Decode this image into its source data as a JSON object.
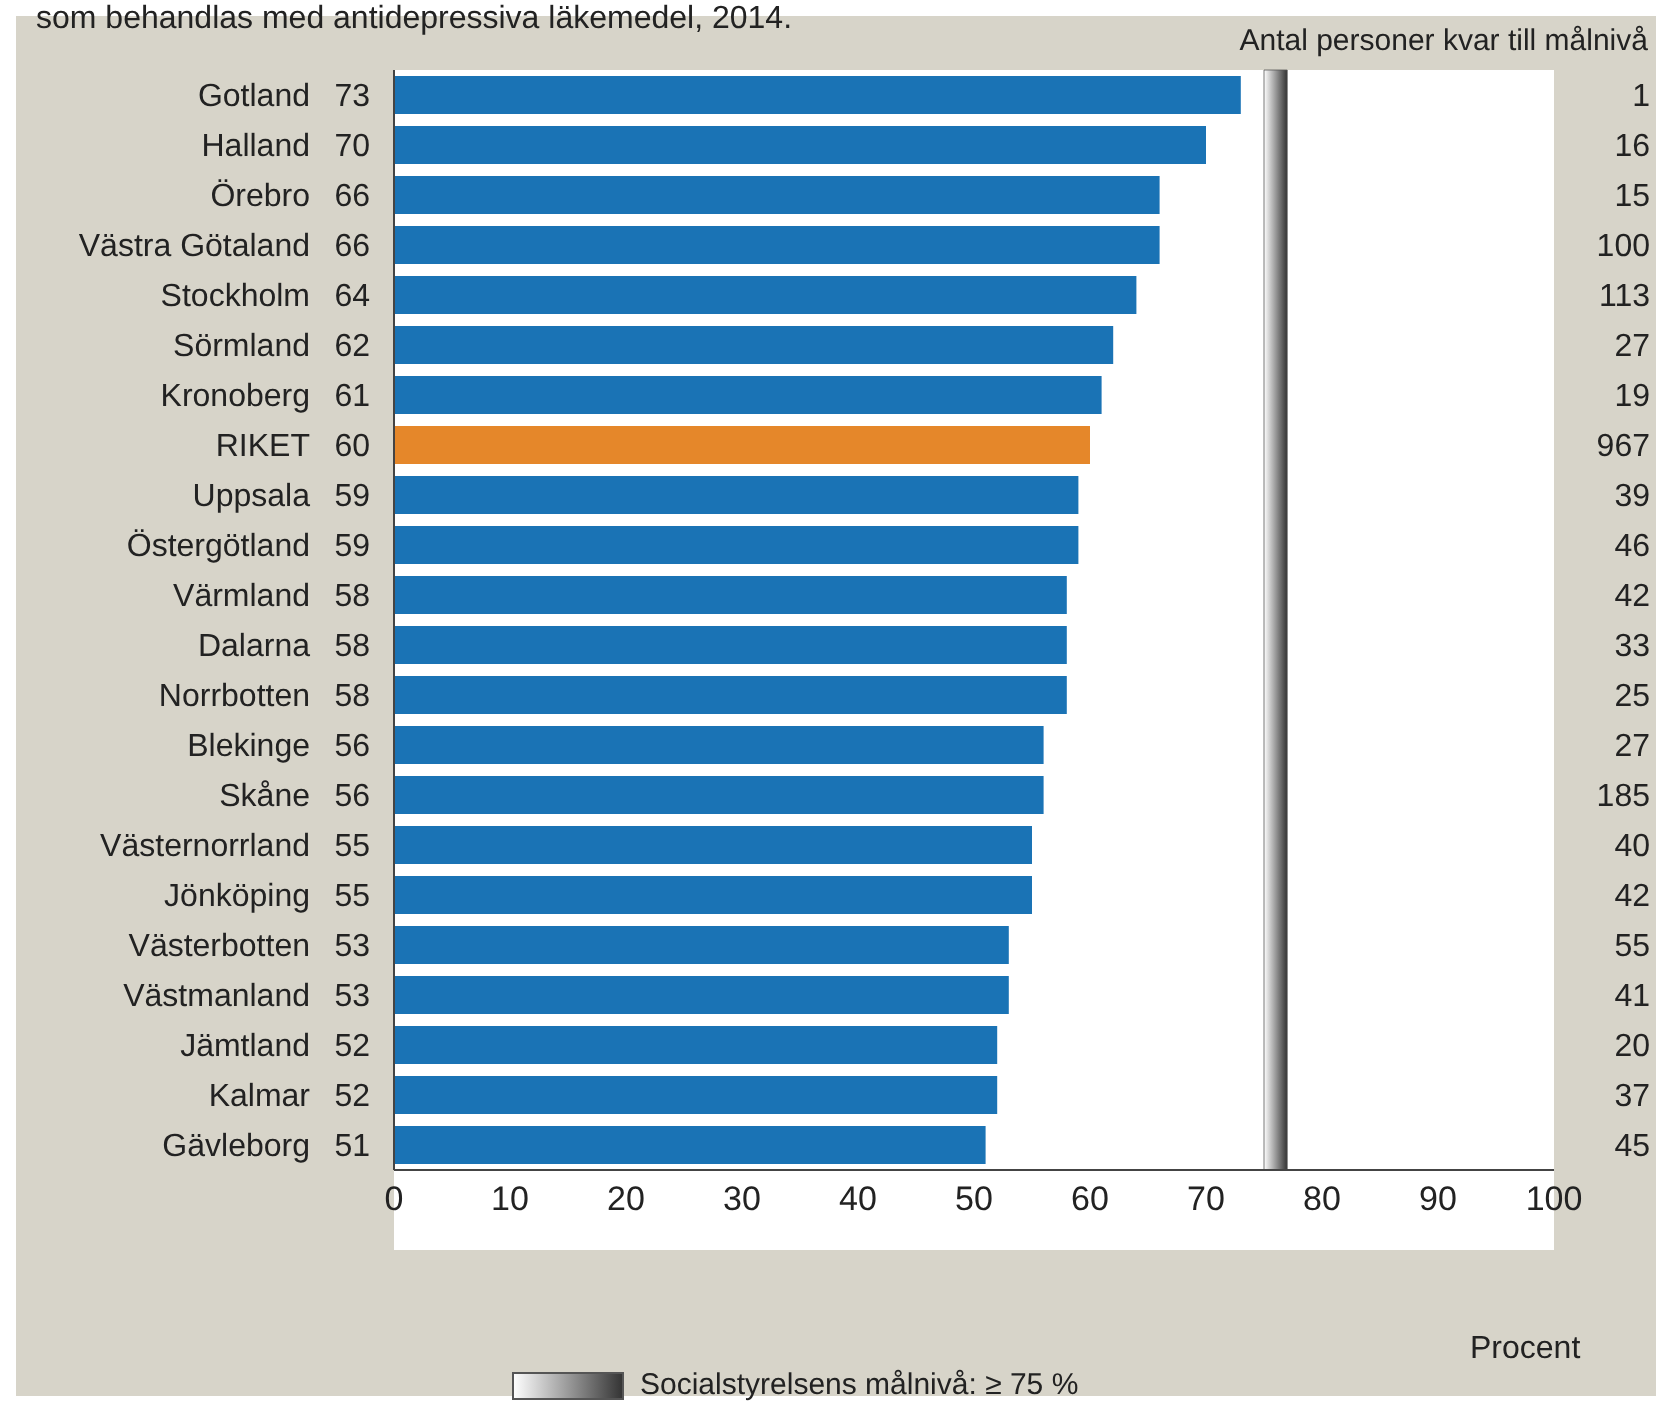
{
  "chart_data": {
    "type": "bar",
    "orientation": "horizontal",
    "title": "som behandlas med antidepressiva läkemedel, 2014.",
    "xlabel": "Procent",
    "categories": [
      "Gotland",
      "Halland",
      "Örebro",
      "Västra Götaland",
      "Stockholm",
      "Sörmland",
      "Kronoberg",
      "RIKET",
      "Uppsala",
      "Östergötland",
      "Värmland",
      "Dalarna",
      "Norrbotten",
      "Blekinge",
      "Skåne",
      "Västernorrland",
      "Jönköping",
      "Västerbotten",
      "Västmanland",
      "Jämtland",
      "Kalmar",
      "Gävleborg"
    ],
    "values": [
      73,
      70,
      66,
      66,
      64,
      62,
      61,
      60,
      59,
      59,
      58,
      58,
      58,
      56,
      56,
      55,
      55,
      53,
      53,
      52,
      52,
      51
    ],
    "colors": [
      "#1a73b5",
      "#1a73b5",
      "#1a73b5",
      "#1a73b5",
      "#1a73b5",
      "#1a73b5",
      "#1a73b5",
      "#e5872a",
      "#1a73b5",
      "#1a73b5",
      "#1a73b5",
      "#1a73b5",
      "#1a73b5",
      "#1a73b5",
      "#1a73b5",
      "#1a73b5",
      "#1a73b5",
      "#1a73b5",
      "#1a73b5",
      "#1a73b5",
      "#1a73b5",
      "#1a73b5"
    ],
    "data_labels": true,
    "xlim": [
      0,
      100
    ],
    "xticks": [
      0,
      10,
      20,
      30,
      40,
      50,
      60,
      70,
      80,
      90,
      100
    ],
    "grid": false,
    "bands": [
      {
        "axis": "x",
        "from": 75,
        "to": 77,
        "label": "Socialstyrelsens målnivå: ≥ 75 %",
        "color": "#555555"
      }
    ],
    "annotations": [
      "Antal personer kvar till målnivå",
      "1",
      "16",
      "15",
      "100",
      "113",
      "27",
      "19",
      "967",
      "39",
      "46",
      "42",
      "33",
      "25",
      "27",
      "185",
      "40",
      "42",
      "55",
      "41",
      "20",
      "37",
      "45"
    ]
  }
}
